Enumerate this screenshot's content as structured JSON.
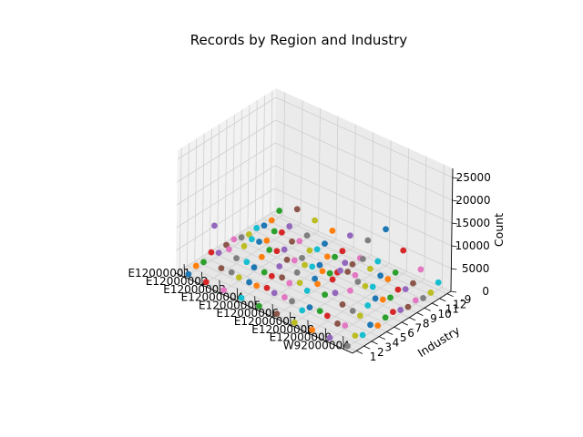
{
  "chart_data": {
    "type": "scatter",
    "projection": "3d",
    "title": "Records by Region and Industry",
    "xlabel": "",
    "ylabel": "Industry",
    "zlabel": "Count",
    "x_ticks": [
      "E12000001",
      "E12000002",
      "E12000003",
      "E12000004",
      "E12000005",
      "E12000006",
      "E12000007",
      "E12000008",
      "E12000009",
      "W92000004"
    ],
    "y_ticks": [
      "1",
      "2",
      "3",
      "4",
      "5",
      "6",
      "7",
      "8",
      "9",
      "10",
      "11",
      "12",
      "-9"
    ],
    "z_ticks": [
      "0",
      "5000",
      "10000",
      "15000",
      "20000",
      "25000"
    ],
    "zlim": [
      0,
      27000
    ],
    "grid": true,
    "marker_colors": [
      "#1f77b4",
      "#ff7f0e",
      "#2ca02c",
      "#d62728",
      "#9467bd",
      "#8c564b",
      "#e377c2",
      "#7f7f7f",
      "#bcbd22",
      "#17becf"
    ],
    "points": [
      {
        "x": "E12000001",
        "y": "1",
        "z": 120
      },
      {
        "x": "E12000001",
        "y": "2",
        "z": 900
      },
      {
        "x": "E12000001",
        "y": "3",
        "z": 700
      },
      {
        "x": "E12000001",
        "y": "4",
        "z": 1800
      },
      {
        "x": "E12000001",
        "y": "5",
        "z": 650
      },
      {
        "x": "E12000001",
        "y": "6",
        "z": 1300
      },
      {
        "x": "E12000001",
        "y": "7",
        "z": 1500
      },
      {
        "x": "E12000001",
        "y": "8",
        "z": 900
      },
      {
        "x": "E12000001",
        "y": "9",
        "z": 500
      },
      {
        "x": "E12000001",
        "y": "10",
        "z": 850
      },
      {
        "x": "E12000001",
        "y": "11",
        "z": 350
      },
      {
        "x": "E12000001",
        "y": "12",
        "z": 450
      },
      {
        "x": "E12000001",
        "y": "-9",
        "z": 1500
      },
      {
        "x": "E12000002",
        "y": "1",
        "z": 150
      },
      {
        "x": "E12000002",
        "y": "2",
        "z": 11500
      },
      {
        "x": "E12000002",
        "y": "3",
        "z": 1100
      },
      {
        "x": "E12000002",
        "y": "4",
        "z": 4200
      },
      {
        "x": "E12000002",
        "y": "5",
        "z": 1200
      },
      {
        "x": "E12000002",
        "y": "6",
        "z": 2800
      },
      {
        "x": "E12000002",
        "y": "7",
        "z": 3300
      },
      {
        "x": "E12000002",
        "y": "8",
        "z": 1700
      },
      {
        "x": "E12000002",
        "y": "9",
        "z": 900
      },
      {
        "x": "E12000002",
        "y": "10",
        "z": 1900
      },
      {
        "x": "E12000002",
        "y": "11",
        "z": 600
      },
      {
        "x": "E12000002",
        "y": "12",
        "z": 900
      },
      {
        "x": "E12000002",
        "y": "-9",
        "z": 3600
      },
      {
        "x": "E12000003",
        "y": "1",
        "z": 150
      },
      {
        "x": "E12000003",
        "y": "2",
        "z": 3000
      },
      {
        "x": "E12000003",
        "y": "3",
        "z": 850
      },
      {
        "x": "E12000003",
        "y": "4",
        "z": 3200
      },
      {
        "x": "E12000003",
        "y": "5",
        "z": 950
      },
      {
        "x": "E12000003",
        "y": "6",
        "z": 2200
      },
      {
        "x": "E12000003",
        "y": "7",
        "z": 2700
      },
      {
        "x": "E12000003",
        "y": "8",
        "z": 1400
      },
      {
        "x": "E12000003",
        "y": "9",
        "z": 700
      },
      {
        "x": "E12000003",
        "y": "10",
        "z": 1400
      },
      {
        "x": "E12000003",
        "y": "11",
        "z": 450
      },
      {
        "x": "E12000003",
        "y": "12",
        "z": 650
      },
      {
        "x": "E12000003",
        "y": "-9",
        "z": 2900
      },
      {
        "x": "E12000004",
        "y": "1",
        "z": 180
      },
      {
        "x": "E12000004",
        "y": "2",
        "z": 2600
      },
      {
        "x": "E12000004",
        "y": "3",
        "z": 800
      },
      {
        "x": "E12000004",
        "y": "4",
        "z": 2700
      },
      {
        "x": "E12000004",
        "y": "5",
        "z": 800
      },
      {
        "x": "E12000004",
        "y": "6",
        "z": 1900
      },
      {
        "x": "E12000004",
        "y": "7",
        "z": 2300
      },
      {
        "x": "E12000004",
        "y": "8",
        "z": 1100
      },
      {
        "x": "E12000004",
        "y": "9",
        "z": 600
      },
      {
        "x": "E12000004",
        "y": "10",
        "z": 1200
      },
      {
        "x": "E12000004",
        "y": "11",
        "z": 400
      },
      {
        "x": "E12000004",
        "y": "12",
        "z": 600
      },
      {
        "x": "E12000004",
        "y": "-9",
        "z": 2400
      },
      {
        "x": "E12000005",
        "y": "1",
        "z": 140
      },
      {
        "x": "E12000005",
        "y": "2",
        "z": 3100
      },
      {
        "x": "E12000005",
        "y": "3",
        "z": 950
      },
      {
        "x": "E12000005",
        "y": "4",
        "z": 3300
      },
      {
        "x": "E12000005",
        "y": "5",
        "z": 1000
      },
      {
        "x": "E12000005",
        "y": "6",
        "z": 2300
      },
      {
        "x": "E12000005",
        "y": "7",
        "z": 2900
      },
      {
        "x": "E12000005",
        "y": "8",
        "z": 1500
      },
      {
        "x": "E12000005",
        "y": "9",
        "z": 800
      },
      {
        "x": "E12000005",
        "y": "10",
        "z": 1600
      },
      {
        "x": "E12000005",
        "y": "11",
        "z": 500
      },
      {
        "x": "E12000005",
        "y": "12",
        "z": 750
      },
      {
        "x": "E12000005",
        "y": "-9",
        "z": 3100
      },
      {
        "x": "E12000006",
        "y": "1",
        "z": 220
      },
      {
        "x": "E12000006",
        "y": "2",
        "z": 2800
      },
      {
        "x": "E12000006",
        "y": "3",
        "z": 900
      },
      {
        "x": "E12000006",
        "y": "4",
        "z": 3900
      },
      {
        "x": "E12000006",
        "y": "5",
        "z": 1100
      },
      {
        "x": "E12000006",
        "y": "6",
        "z": 2700
      },
      {
        "x": "E12000006",
        "y": "7",
        "z": 3300
      },
      {
        "x": "E12000006",
        "y": "8",
        "z": 1800
      },
      {
        "x": "E12000006",
        "y": "9",
        "z": 950
      },
      {
        "x": "E12000006",
        "y": "10",
        "z": 2000
      },
      {
        "x": "E12000006",
        "y": "11",
        "z": 650
      },
      {
        "x": "E12000006",
        "y": "12",
        "z": 950
      },
      {
        "x": "E12000006",
        "y": "-9",
        "z": 3800
      },
      {
        "x": "E12000007",
        "y": "1",
        "z": 60
      },
      {
        "x": "E12000007",
        "y": "2",
        "z": 1700
      },
      {
        "x": "E12000007",
        "y": "3",
        "z": 1300
      },
      {
        "x": "E12000007",
        "y": "4",
        "z": 5400
      },
      {
        "x": "E12000007",
        "y": "5",
        "z": 2000
      },
      {
        "x": "E12000007",
        "y": "6",
        "z": 4300
      },
      {
        "x": "E12000007",
        "y": "7",
        "z": 5200
      },
      {
        "x": "E12000007",
        "y": "8",
        "z": 3900
      },
      {
        "x": "E12000007",
        "y": "9",
        "z": 2100
      },
      {
        "x": "E12000007",
        "y": "10",
        "z": 4600
      },
      {
        "x": "E12000007",
        "y": "11",
        "z": 1400
      },
      {
        "x": "E12000007",
        "y": "12",
        "z": 2000
      },
      {
        "x": "E12000007",
        "y": "-9",
        "z": 8000
      },
      {
        "x": "E12000008",
        "y": "1",
        "z": 210
      },
      {
        "x": "E12000008",
        "y": "2",
        "z": 3300
      },
      {
        "x": "E12000008",
        "y": "3",
        "z": 1200
      },
      {
        "x": "E12000008",
        "y": "4",
        "z": 5200
      },
      {
        "x": "E12000008",
        "y": "5",
        "z": 1600
      },
      {
        "x": "E12000008",
        "y": "6",
        "z": 3600
      },
      {
        "x": "E12000008",
        "y": "7",
        "z": 4500
      },
      {
        "x": "E12000008",
        "y": "8",
        "z": 2500
      },
      {
        "x": "E12000008",
        "y": "9",
        "z": 1300
      },
      {
        "x": "E12000008",
        "y": "10",
        "z": 2700
      },
      {
        "x": "E12000008",
        "y": "11",
        "z": 900
      },
      {
        "x": "E12000008",
        "y": "12",
        "z": 1300
      },
      {
        "x": "E12000008",
        "y": "-9",
        "z": 5100
      },
      {
        "x": "E12000009",
        "y": "1",
        "z": 260
      },
      {
        "x": "E12000009",
        "y": "2",
        "z": 2300
      },
      {
        "x": "E12000009",
        "y": "3",
        "z": 850
      },
      {
        "x": "E12000009",
        "y": "4",
        "z": 3000
      },
      {
        "x": "E12000009",
        "y": "5",
        "z": 900
      },
      {
        "x": "E12000009",
        "y": "6",
        "z": 2100
      },
      {
        "x": "E12000009",
        "y": "7",
        "z": 2600
      },
      {
        "x": "E12000009",
        "y": "8",
        "z": 1300
      },
      {
        "x": "E12000009",
        "y": "9",
        "z": 700
      },
      {
        "x": "E12000009",
        "y": "10",
        "z": 1400
      },
      {
        "x": "E12000009",
        "y": "11",
        "z": 450
      },
      {
        "x": "E12000009",
        "y": "12",
        "z": 700
      },
      {
        "x": "E12000009",
        "y": "-9",
        "z": 2700
      },
      {
        "x": "W92000004",
        "y": "1",
        "z": 180
      },
      {
        "x": "W92000004",
        "y": "2",
        "z": 1400
      },
      {
        "x": "W92000004",
        "y": "3",
        "z": 500
      },
      {
        "x": "W92000004",
        "y": "4",
        "z": 1700
      },
      {
        "x": "W92000004",
        "y": "5",
        "z": 500
      },
      {
        "x": "W92000004",
        "y": "6",
        "z": 1200
      },
      {
        "x": "W92000004",
        "y": "7",
        "z": 1400
      },
      {
        "x": "W92000004",
        "y": "8",
        "z": 800
      },
      {
        "x": "W92000004",
        "y": "9",
        "z": 400
      },
      {
        "x": "W92000004",
        "y": "10",
        "z": 800
      },
      {
        "x": "W92000004",
        "y": "11",
        "z": 250
      },
      {
        "x": "W92000004",
        "y": "12",
        "z": 400
      },
      {
        "x": "W92000004",
        "y": "-9",
        "z": 1600
      }
    ]
  }
}
